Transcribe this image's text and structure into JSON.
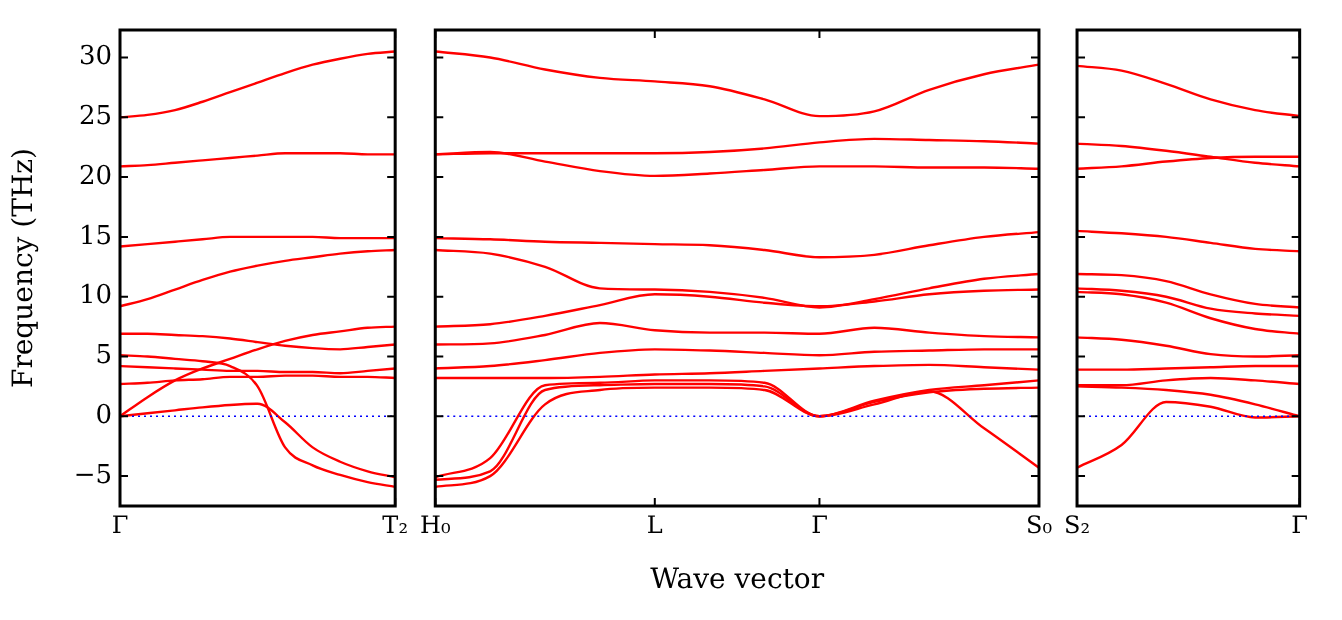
{
  "chart_data": [
    {
      "type": "line",
      "ylabel": "Frequency (THz)",
      "categories": [
        "Γ",
        null,
        null,
        null,
        null,
        null,
        null,
        null,
        null,
        null,
        "T₂"
      ],
      "ylim": [
        -7.5,
        32.3
      ],
      "yticks": [
        -5,
        0,
        5,
        10,
        15,
        20,
        25,
        30
      ],
      "grid": false,
      "ref_lines": [
        {
          "axis": "y",
          "value": 0,
          "color": "#0000ff",
          "line_style": "dotted"
        }
      ],
      "series": [
        {
          "color": "#ff0000",
          "values": [
            0,
            0.25,
            0.5,
            0.75,
            0.95,
            1.05,
            -0.5,
            -2.6,
            -3.8,
            -4.6,
            -5.1
          ]
        },
        {
          "color": "#ff0000",
          "values": [
            5.1,
            5.0,
            4.8,
            4.6,
            4.2,
            2.5,
            -2.6,
            -4.1,
            -4.9,
            -5.5,
            -5.9
          ]
        },
        {
          "color": "#ff0000",
          "values": [
            0,
            1.6,
            3.0,
            4.0,
            4.8,
            5.6,
            6.3,
            6.8,
            7.1,
            7.4,
            7.5
          ]
        },
        {
          "color": "#ff0000",
          "values": [
            6.9,
            6.9,
            6.8,
            6.7,
            6.5,
            6.2,
            5.9,
            5.7,
            5.6,
            5.8,
            6.0
          ]
        },
        {
          "color": "#ff0000",
          "values": [
            4.2,
            4.1,
            4.0,
            3.9,
            3.8,
            3.8,
            3.7,
            3.7,
            3.6,
            3.8,
            4.0
          ]
        },
        {
          "color": "#ff0000",
          "values": [
            2.7,
            2.8,
            3.0,
            3.1,
            3.3,
            3.3,
            3.4,
            3.4,
            3.3,
            3.3,
            3.2
          ]
        },
        {
          "color": "#ff0000",
          "values": [
            9.2,
            9.8,
            10.6,
            11.4,
            12.1,
            12.6,
            13.0,
            13.3,
            13.6,
            13.8,
            13.9
          ]
        },
        {
          "color": "#ff0000",
          "values": [
            14.2,
            14.4,
            14.6,
            14.8,
            15.0,
            15.0,
            15.0,
            15.0,
            14.9,
            14.9,
            14.9
          ]
        },
        {
          "color": "#ff0000",
          "values": [
            20.9,
            21.0,
            21.2,
            21.4,
            21.6,
            21.8,
            22.0,
            22.0,
            22.0,
            21.9,
            21.9
          ]
        },
        {
          "color": "#ff0000",
          "values": [
            25.0,
            25.2,
            25.6,
            26.3,
            27.1,
            27.9,
            28.7,
            29.4,
            29.9,
            30.3,
            30.5
          ]
        }
      ]
    },
    {
      "type": "line",
      "xlabel": "Wave vector",
      "tick_labels": "x",
      "categories": [
        "H₀",
        null,
        null,
        null,
        "L",
        null,
        null,
        "Γ",
        null,
        null,
        null,
        "S₀"
      ],
      "ylim": [
        -7.5,
        32.3
      ],
      "yticks": [
        -5,
        0,
        5,
        10,
        15,
        20,
        25,
        30
      ],
      "grid": false,
      "ref_lines": [
        {
          "axis": "y",
          "value": 0,
          "color": "#0000ff",
          "line_style": "dotted"
        }
      ],
      "series": [
        {
          "color": "#ff0000",
          "values": [
            -5.1,
            -3.5,
            2.6,
            2.8,
            3.0,
            3.0,
            2.8,
            0,
            1.3,
            2.2,
            2.6,
            3.0
          ]
        },
        {
          "color": "#ff0000",
          "values": [
            -5.9,
            -5.0,
            1.0,
            2.2,
            2.4,
            2.4,
            2.2,
            0,
            1.0,
            2.1,
            -1.0,
            -4.3
          ]
        },
        {
          "color": "#ff0000",
          "values": [
            7.5,
            7.7,
            8.4,
            9.3,
            10.2,
            10.0,
            9.5,
            9.2,
            9.6,
            10.2,
            10.5,
            10.6
          ]
        },
        {
          "color": "#ff0000",
          "values": [
            6.0,
            6.1,
            6.8,
            7.8,
            7.2,
            7.0,
            7.0,
            6.9,
            7.4,
            7.0,
            6.7,
            6.6
          ]
        },
        {
          "color": "#ff0000",
          "values": [
            4.0,
            4.2,
            4.7,
            5.3,
            5.6,
            5.5,
            5.3,
            5.1,
            5.4,
            5.5,
            5.6,
            5.6
          ]
        },
        {
          "color": "#ff0000",
          "values": [
            3.2,
            3.2,
            3.2,
            3.3,
            3.5,
            3.6,
            3.8,
            4.0,
            4.2,
            4.3,
            4.1,
            3.9
          ]
        },
        {
          "color": "#ff0000",
          "values": [
            -5.3,
            -4.6,
            2.2,
            2.6,
            2.7,
            2.7,
            2.5,
            0,
            1.2,
            2.0,
            2.3,
            2.4
          ]
        },
        {
          "color": "#ff0000",
          "values": [
            13.9,
            13.6,
            12.5,
            10.7,
            10.6,
            10.4,
            9.9,
            9.1,
            9.8,
            10.7,
            11.5,
            11.9
          ]
        },
        {
          "color": "#ff0000",
          "values": [
            14.9,
            14.8,
            14.6,
            14.5,
            14.4,
            14.3,
            13.9,
            13.3,
            13.5,
            14.3,
            15.0,
            15.4
          ]
        },
        {
          "color": "#ff0000",
          "values": [
            21.9,
            22.1,
            21.3,
            20.5,
            20.1,
            20.3,
            20.6,
            20.9,
            20.9,
            20.8,
            20.8,
            20.7
          ]
        },
        {
          "color": "#ff0000",
          "values": [
            21.9,
            22.0,
            22.0,
            22.0,
            22.0,
            22.1,
            22.4,
            22.9,
            23.2,
            23.1,
            23.0,
            22.8
          ]
        },
        {
          "color": "#ff0000",
          "values": [
            30.5,
            30.0,
            29.0,
            28.3,
            28.0,
            27.6,
            26.5,
            25.1,
            25.5,
            27.3,
            28.6,
            29.4
          ]
        }
      ]
    },
    {
      "type": "line",
      "tick_labels": "x",
      "categories": [
        "S₂",
        null,
        null,
        null,
        null,
        "Γ"
      ],
      "ylim": [
        -7.5,
        32.3
      ],
      "yticks": [
        -5,
        0,
        5,
        10,
        15,
        20,
        25,
        30
      ],
      "grid": false,
      "ref_lines": [
        {
          "axis": "y",
          "value": 0,
          "color": "#0000ff",
          "line_style": "dotted"
        }
      ],
      "series": [
        {
          "color": "#ff0000",
          "values": [
            2.5,
            2.4,
            2.2,
            1.8,
            1.0,
            0
          ]
        },
        {
          "color": "#ff0000",
          "values": [
            -4.3,
            -2.4,
            1.2,
            0.8,
            -0.1,
            0
          ]
        },
        {
          "color": "#ff0000",
          "values": [
            10.7,
            10.5,
            10.0,
            9.0,
            8.6,
            8.4
          ]
        },
        {
          "color": "#ff0000",
          "values": [
            10.4,
            10.2,
            9.5,
            8.2,
            7.3,
            6.9
          ]
        },
        {
          "color": "#ff0000",
          "values": [
            6.6,
            6.4,
            5.9,
            5.2,
            5.0,
            5.1
          ]
        },
        {
          "color": "#ff0000",
          "values": [
            3.9,
            3.9,
            4.0,
            4.1,
            4.2,
            4.2
          ]
        },
        {
          "color": "#ff0000",
          "values": [
            2.6,
            2.6,
            3.0,
            3.2,
            3.0,
            2.7
          ]
        },
        {
          "color": "#ff0000",
          "values": [
            11.9,
            11.8,
            11.3,
            10.2,
            9.4,
            9.1
          ]
        },
        {
          "color": "#ff0000",
          "values": [
            15.5,
            15.3,
            15.0,
            14.5,
            14.0,
            13.8
          ]
        },
        {
          "color": "#ff0000",
          "values": [
            20.7,
            20.9,
            21.3,
            21.6,
            21.7,
            21.7
          ]
        },
        {
          "color": "#ff0000",
          "values": [
            22.8,
            22.6,
            22.2,
            21.7,
            21.2,
            20.9
          ]
        },
        {
          "color": "#ff0000",
          "values": [
            29.3,
            28.9,
            27.8,
            26.5,
            25.6,
            25.1
          ]
        }
      ]
    }
  ]
}
